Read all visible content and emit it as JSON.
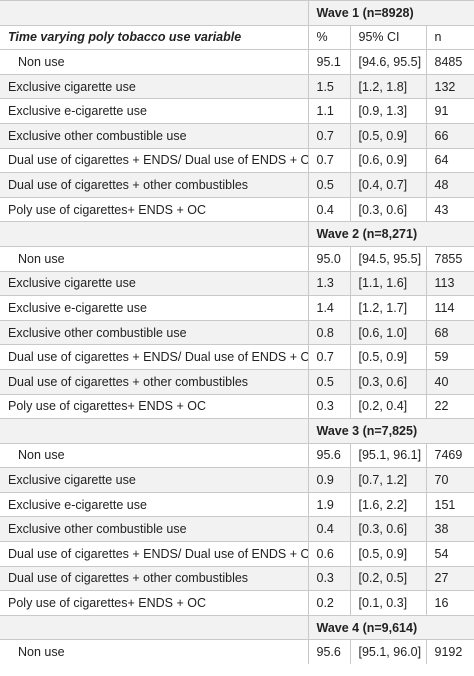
{
  "header_row": {
    "label": "",
    "wave": "Wave 1 (n=8928)"
  },
  "column_row": {
    "variable": "Time varying poly tobacco use variable",
    "pct": "%",
    "ci": "95% CI",
    "n": "n"
  },
  "waves": [
    {
      "rows": [
        {
          "label": "Non use",
          "pct": "95.1",
          "ci": "[94.6, 95.5]",
          "n": "8485",
          "indent": true
        },
        {
          "label": "Exclusive cigarette use",
          "pct": "1.5",
          "ci": "[1.2, 1.8]",
          "n": "132"
        },
        {
          "label": "Exclusive e-cigarette use",
          "pct": "1.1",
          "ci": "[0.9, 1.3]",
          "n": "91"
        },
        {
          "label": "Exclusive other combustible use",
          "pct": "0.7",
          "ci": "[0.5, 0.9]",
          "n": "66"
        },
        {
          "label": "Dual use of cigarettes + ENDS/ Dual use of ENDS  + OC",
          "pct": "0.7",
          "ci": "[0.6, 0.9]",
          "n": "64"
        },
        {
          "label": "Dual use of cigarettes + other combustibles",
          "pct": "0.5",
          "ci": "[0.4, 0.7]",
          "n": "48"
        },
        {
          "label": "Poly use of cigarettes+ ENDS + OC",
          "pct": "0.4",
          "ci": "[0.3, 0.6]",
          "n": "43"
        }
      ]
    },
    {
      "title": "Wave 2 (n=8,271)",
      "rows": [
        {
          "label": "Non use",
          "pct": "95.0",
          "ci": "[94.5, 95.5]",
          "n": "7855",
          "indent": true
        },
        {
          "label": "Exclusive cigarette use",
          "pct": "1.3",
          "ci": "[1.1, 1.6]",
          "n": "113"
        },
        {
          "label": "Exclusive e-cigarette use",
          "pct": "1.4",
          "ci": "[1.2, 1.7]",
          "n": "114"
        },
        {
          "label": "Exclusive other combustible use",
          "pct": "0.8",
          "ci": "[0.6, 1.0]",
          "n": "68"
        },
        {
          "label": "Dual use of cigarettes + ENDS/ Dual use of ENDS  + OC",
          "pct": "0.7",
          "ci": "[0.5, 0.9]",
          "n": "59"
        },
        {
          "label": "Dual use of cigarettes + other combustibles",
          "pct": "0.5",
          "ci": "[0.3, 0.6]",
          "n": "40"
        },
        {
          "label": "Poly use of cigarettes+ ENDS + OC",
          "pct": "0.3",
          "ci": "[0.2, 0.4]",
          "n": "22"
        }
      ]
    },
    {
      "title": "Wave 3 (n=7,825)",
      "rows": [
        {
          "label": "Non use",
          "pct": "95.6",
          "ci": "[95.1, 96.1]",
          "n": "7469",
          "indent": true
        },
        {
          "label": "Exclusive cigarette use",
          "pct": "0.9",
          "ci": "[0.7, 1.2]",
          "n": "70"
        },
        {
          "label": "Exclusive e-cigarette use",
          "pct": "1.9",
          "ci": "[1.6, 2.2]",
          "n": "151"
        },
        {
          "label": "Exclusive other combustible use",
          "pct": "0.4",
          "ci": "[0.3, 0.6]",
          "n": "38"
        },
        {
          "label": "Dual use of cigarettes + ENDS/ Dual use of ENDS  + OC",
          "pct": "0.6",
          "ci": "[0.5, 0.9]",
          "n": "54"
        },
        {
          "label": "Dual use of cigarettes + other combustibles",
          "pct": "0.3",
          "ci": "[0.2, 0.5]",
          "n": "27"
        },
        {
          "label": "Poly use of cigarettes+ ENDS + OC",
          "pct": "0.2",
          "ci": "[0.1, 0.3]",
          "n": "16"
        }
      ]
    },
    {
      "title": "Wave 4 (n=9,614)",
      "rows": [
        {
          "label": "Non use",
          "pct": "95.6",
          "ci": "[95.1, 96.0]",
          "n": "9192",
          "indent": true
        }
      ]
    }
  ]
}
